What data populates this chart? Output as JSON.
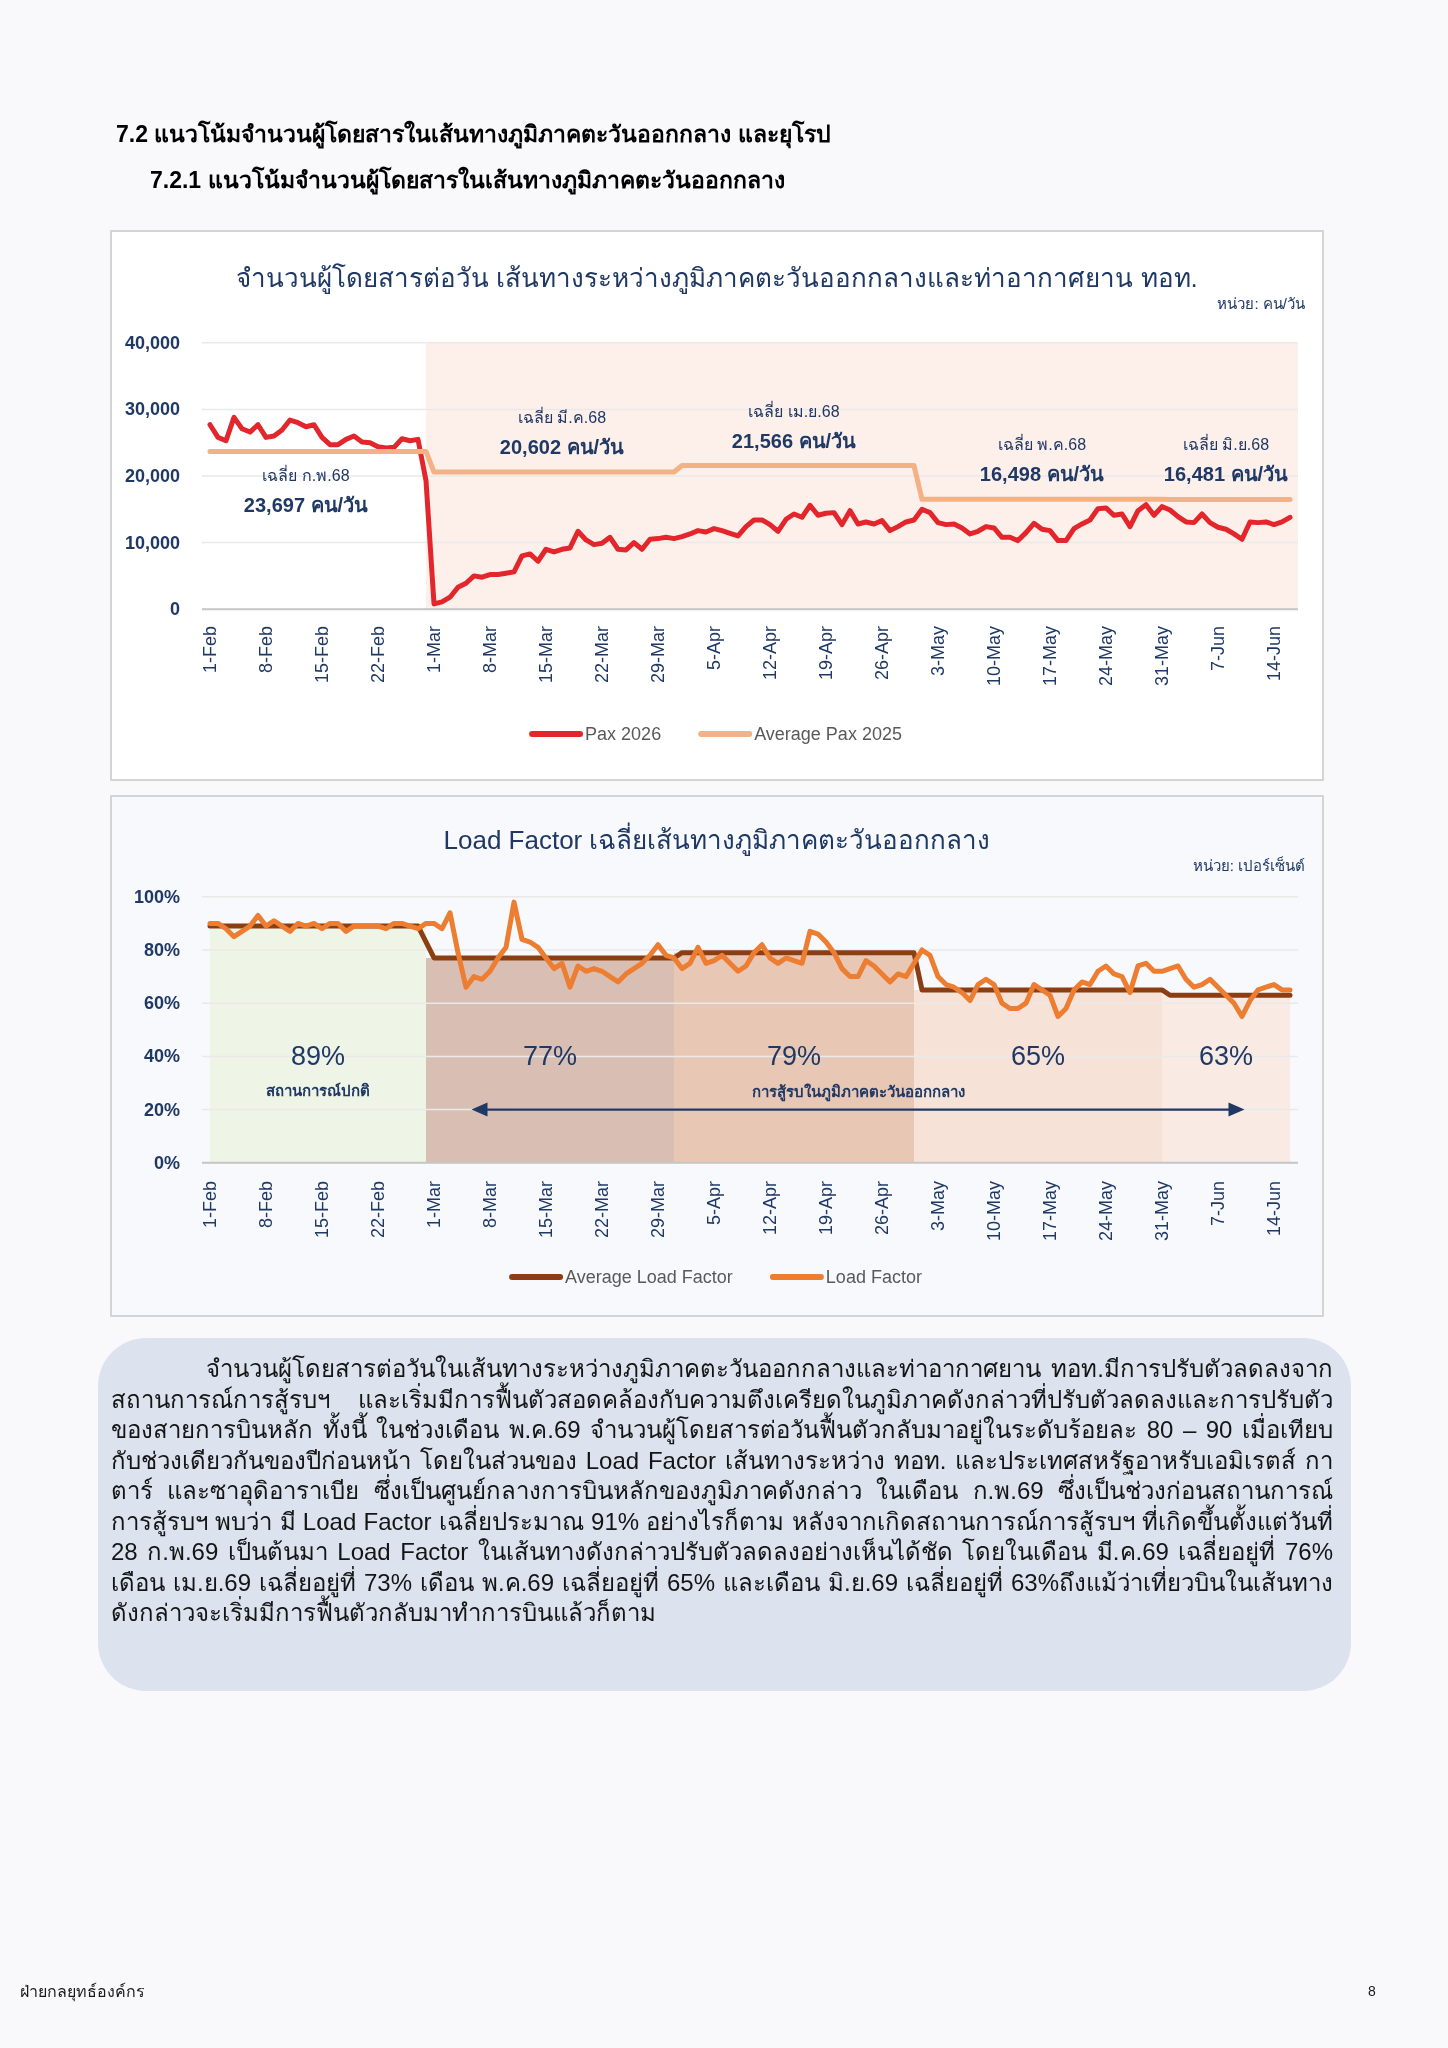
{
  "chart_data": [
    {
      "type": "line",
      "title": "จำนวนผู้โดยสารต่อวัน เส้นทางระหว่างภูมิภาคตะวันออกกลางและท่าอากาศยาน ทอท.",
      "subtitle": "หน่วย: คน/วัน",
      "x": [
        "--02-01",
        "--02-02",
        "--02-03",
        "--02-04",
        "--02-05",
        "--02-06",
        "--02-07",
        "--02-08",
        "--02-09",
        "--02-10",
        "--02-11",
        "--02-12",
        "--02-13",
        "--02-14",
        "--02-15",
        "--02-16",
        "--02-17",
        "--02-18",
        "--02-19",
        "--02-20",
        "--02-21",
        "--02-22",
        "--02-23",
        "--02-24",
        "--02-25",
        "--02-26",
        "--02-27",
        "--02-28",
        "--03-01",
        "--03-02",
        "--03-03",
        "--03-04",
        "--03-05",
        "--03-06",
        "--03-07",
        "--03-08",
        "--03-09",
        "--03-10",
        "--03-11",
        "--03-12",
        "--03-13",
        "--03-14",
        "--03-15",
        "--03-16",
        "--03-17",
        "--03-18",
        "--03-19",
        "--03-20",
        "--03-21",
        "--03-22",
        "--03-23",
        "--03-24",
        "--03-25",
        "--03-26",
        "--03-27",
        "--03-28",
        "--03-29",
        "--03-30",
        "--03-31",
        "--04-01",
        "--04-02",
        "--04-03",
        "--04-04",
        "--04-05",
        "--04-06",
        "--04-07",
        "--04-08",
        "--04-09",
        "--04-10",
        "--04-11",
        "--04-12",
        "--04-13",
        "--04-14",
        "--04-15",
        "--04-16",
        "--04-17",
        "--04-18",
        "--04-19",
        "--04-20",
        "--04-21",
        "--04-22",
        "--04-23",
        "--04-24",
        "--04-25",
        "--04-26",
        "--04-27",
        "--04-28",
        "--04-29",
        "--04-30",
        "--05-01",
        "--05-02",
        "--05-03",
        "--05-04",
        "--05-05",
        "--05-06",
        "--05-07",
        "--05-08",
        "--05-09",
        "--05-10",
        "--05-11",
        "--05-12",
        "--05-13",
        "--05-14",
        "--05-15",
        "--05-16",
        "--05-17",
        "--05-18",
        "--05-19",
        "--05-20",
        "--05-21",
        "--05-22",
        "--05-23",
        "--05-24",
        "--05-25",
        "--05-26",
        "--05-27",
        "--05-28",
        "--05-29",
        "--05-30",
        "--05-31",
        "--06-01",
        "--06-02",
        "--06-03",
        "--06-04",
        "--06-05",
        "--06-06",
        "--06-07",
        "--06-08",
        "--06-09",
        "--06-10",
        "--06-11",
        "--06-12",
        "--06-13",
        "--06-14",
        "--06-15",
        "--06-16"
      ],
      "series": [
        {
          "name": "Pax 2026",
          "color": "#e3262b",
          "values": [
            27700,
            25800,
            25300,
            28800,
            27100,
            26600,
            27700,
            25800,
            26000,
            26900,
            28400,
            28000,
            27400,
            27700,
            25800,
            24700,
            24700,
            25500,
            26000,
            25100,
            25000,
            24400,
            24200,
            24300,
            25600,
            25300,
            25500,
            19300,
            800,
            1100,
            1800,
            3300,
            3900,
            5000,
            4800,
            5200,
            5200,
            5400,
            5600,
            8000,
            8300,
            7200,
            9000,
            8600,
            9000,
            9200,
            11700,
            10400,
            9700,
            9900,
            10800,
            9000,
            8900,
            10000,
            9000,
            10500,
            10600,
            10800,
            10600,
            10900,
            11300,
            11800,
            11600,
            12100,
            11800,
            11400,
            11000,
            12400,
            13400,
            13400,
            12700,
            11700,
            13500,
            14300,
            13800,
            15600,
            14100,
            14400,
            14500,
            12700,
            14800,
            12800,
            13100,
            12800,
            13300,
            11800,
            12400,
            13100,
            13400,
            15000,
            14500,
            13000,
            12700,
            12800,
            12200,
            11300,
            11700,
            12400,
            12200,
            10800,
            10800,
            10300,
            11500,
            12900,
            12000,
            11800,
            10300,
            10300,
            12100,
            12800,
            13400,
            15100,
            15200,
            14100,
            14300,
            12400,
            14800,
            15700,
            14100,
            15400,
            14900,
            13900,
            13100,
            13000,
            14300,
            13000,
            12300,
            12000,
            11300,
            10500,
            13100,
            13000,
            13100,
            12700,
            13100,
            13800
          ]
        },
        {
          "name": "Average Pax 2025",
          "color": "#f4b183",
          "values": [
            23697,
            23697,
            23697,
            23697,
            23697,
            23697,
            23697,
            23697,
            23697,
            23697,
            23697,
            23697,
            23697,
            23697,
            23697,
            23697,
            23697,
            23697,
            23697,
            23697,
            23697,
            23697,
            23697,
            23697,
            23697,
            23697,
            23697,
            23697,
            20602,
            20602,
            20602,
            20602,
            20602,
            20602,
            20602,
            20602,
            20602,
            20602,
            20602,
            20602,
            20602,
            20602,
            20602,
            20602,
            20602,
            20602,
            20602,
            20602,
            20602,
            20602,
            20602,
            20602,
            20602,
            20602,
            20602,
            20602,
            20602,
            20602,
            20602,
            21566,
            21566,
            21566,
            21566,
            21566,
            21566,
            21566,
            21566,
            21566,
            21566,
            21566,
            21566,
            21566,
            21566,
            21566,
            21566,
            21566,
            21566,
            21566,
            21566,
            21566,
            21566,
            21566,
            21566,
            21566,
            21566,
            21566,
            21566,
            21566,
            21566,
            16498,
            16498,
            16498,
            16498,
            16498,
            16498,
            16498,
            16498,
            16498,
            16498,
            16498,
            16498,
            16498,
            16498,
            16498,
            16498,
            16498,
            16498,
            16498,
            16498,
            16498,
            16498,
            16498,
            16498,
            16498,
            16498,
            16498,
            16498,
            16498,
            16498,
            16498,
            16481,
            16481,
            16481,
            16481,
            16481,
            16481,
            16481,
            16481,
            16481,
            16481,
            16481,
            16481,
            16481,
            16481,
            16481,
            16481
          ],
          "value_labels": [
            null,
            null,
            null,
            null,
            null,
            null,
            null,
            null,
            null,
            null,
            null,
            null,
            "เฉลี่ย ก.พ.68\n23,697 คน/วัน",
            null,
            null,
            null,
            null,
            null,
            null,
            null,
            null,
            null,
            null,
            null,
            null,
            null,
            null,
            null,
            null,
            null,
            null,
            null,
            null,
            null,
            null,
            null,
            null,
            null,
            null,
            null,
            null,
            null,
            null,
            null,
            "เฉลี่ย มี.ค.68\n20,602 คน/วัน",
            null,
            null,
            null,
            null,
            null,
            null,
            null,
            null,
            null,
            null,
            null,
            null,
            null,
            null,
            null,
            null,
            null,
            null,
            null,
            null,
            null,
            null,
            null,
            null,
            null,
            null,
            null,
            null,
            "เฉลี่ย เม.ย.68\n21,566 คน/วัน",
            null,
            null,
            null,
            null,
            null,
            null,
            null,
            null,
            null,
            null,
            null,
            null,
            null,
            null,
            null,
            null,
            null,
            null,
            null,
            null,
            null,
            null,
            null,
            null,
            null,
            null,
            null,
            null,
            null,
            null,
            "เฉลี่ย พ.ค.68\n16,498 คน/วัน",
            null,
            null,
            null,
            null,
            null,
            null,
            null,
            null,
            null,
            null,
            null,
            null,
            null,
            null,
            null,
            null,
            null,
            null,
            null,
            null,
            null,
            null,
            "เฉลี่ย มิ.ย.68\n16,481 คน/วัน",
            null,
            null,
            null,
            null,
            null,
            null,
            null,
            null
          ]
        }
      ],
      "xlim": [
        "--01-31",
        "--06-17"
      ],
      "xticks": [
        {
          "value": "--02-01",
          "label": "1-Feb"
        },
        {
          "value": "--02-08",
          "label": "8-Feb"
        },
        {
          "value": "--02-15",
          "label": "15-Feb"
        },
        {
          "value": "--02-22",
          "label": "22-Feb"
        },
        {
          "value": "--03-01",
          "label": "1-Mar"
        },
        {
          "value": "--03-08",
          "label": "8-Mar"
        },
        {
          "value": "--03-15",
          "label": "15-Mar"
        },
        {
          "value": "--03-22",
          "label": "22-Mar"
        },
        {
          "value": "--03-29",
          "label": "29-Mar"
        },
        {
          "value": "--04-05",
          "label": "5-Apr"
        },
        {
          "value": "--04-12",
          "label": "12-Apr"
        },
        {
          "value": "--04-19",
          "label": "19-Apr"
        },
        {
          "value": "--04-26",
          "label": "26-Apr"
        },
        {
          "value": "--05-03",
          "label": "3-May"
        },
        {
          "value": "--05-10",
          "label": "10-May"
        },
        {
          "value": "--05-17",
          "label": "17-May"
        },
        {
          "value": "--05-24",
          "label": "24-May"
        },
        {
          "value": "--05-31",
          "label": "31-May"
        },
        {
          "value": "--06-07",
          "label": "7-Jun"
        },
        {
          "value": "--06-14",
          "label": "14-Jun"
        }
      ],
      "ylim": [
        0,
        40000
      ],
      "yticks": [
        0,
        {
          "value": 10000,
          "label": "10,000"
        },
        {
          "value": 20000,
          "label": "20,000"
        },
        {
          "value": 30000,
          "label": "30,000"
        },
        {
          "value": 40000,
          "label": "40,000"
        }
      ],
      "grid": "y",
      "legend": "bottom",
      "bands": [
        {
          "axis": "x",
          "from": "--02-28",
          "to": "--06-17",
          "color": "#fdf0eb"
        }
      ],
      "annotations": [
        "7.2 แนวโน้มจำนวนผู้โดยสารในเส้นทางภูมิภาคตะวันออกกลาง และยุโรป",
        "7.2.1 แนวโน้มจำนวนผู้โดยสารในเส้นทางภูมิภาคตะวันออกกลาง"
      ]
    },
    {
      "type": "line",
      "title": "Load Factor เฉลี่ยเส้นทางภูมิภาคตะวันออกกลาง",
      "subtitle": "หน่วย: เปอร์เซ็นต์",
      "x": [
        "--02-01",
        "--02-02",
        "--02-03",
        "--02-04",
        "--02-05",
        "--02-06",
        "--02-07",
        "--02-08",
        "--02-09",
        "--02-10",
        "--02-11",
        "--02-12",
        "--02-13",
        "--02-14",
        "--02-15",
        "--02-16",
        "--02-17",
        "--02-18",
        "--02-19",
        "--02-20",
        "--02-21",
        "--02-22",
        "--02-23",
        "--02-24",
        "--02-25",
        "--02-26",
        "--02-27",
        "--02-28",
        "--03-01",
        "--03-02",
        "--03-03",
        "--03-04",
        "--03-05",
        "--03-06",
        "--03-07",
        "--03-08",
        "--03-09",
        "--03-10",
        "--03-11",
        "--03-12",
        "--03-13",
        "--03-14",
        "--03-15",
        "--03-16",
        "--03-17",
        "--03-18",
        "--03-19",
        "--03-20",
        "--03-21",
        "--03-22",
        "--03-23",
        "--03-24",
        "--03-25",
        "--03-26",
        "--03-27",
        "--03-28",
        "--03-29",
        "--03-30",
        "--03-31",
        "--04-01",
        "--04-02",
        "--04-03",
        "--04-04",
        "--04-05",
        "--04-06",
        "--04-07",
        "--04-08",
        "--04-09",
        "--04-10",
        "--04-11",
        "--04-12",
        "--04-13",
        "--04-14",
        "--04-15",
        "--04-16",
        "--04-17",
        "--04-18",
        "--04-19",
        "--04-20",
        "--04-21",
        "--04-22",
        "--04-23",
        "--04-24",
        "--04-25",
        "--04-26",
        "--04-27",
        "--04-28",
        "--04-29",
        "--04-30",
        "--05-01",
        "--05-02",
        "--05-03",
        "--05-04",
        "--05-05",
        "--05-06",
        "--05-07",
        "--05-08",
        "--05-09",
        "--05-10",
        "--05-11",
        "--05-12",
        "--05-13",
        "--05-14",
        "--05-15",
        "--05-16",
        "--05-17",
        "--05-18",
        "--05-19",
        "--05-20",
        "--05-21",
        "--05-22",
        "--05-23",
        "--05-24",
        "--05-25",
        "--05-26",
        "--05-27",
        "--05-28",
        "--05-29",
        "--05-30",
        "--05-31",
        "--06-01",
        "--06-02",
        "--06-03",
        "--06-04",
        "--06-05",
        "--06-06",
        "--06-07",
        "--06-08",
        "--06-09",
        "--06-10",
        "--06-11",
        "--06-12",
        "--06-13",
        "--06-14",
        "--06-15",
        "--06-16"
      ],
      "series": [
        {
          "type": "area",
          "color": "#eef5e6",
          "x": [
            "--02-01",
            "--02-28"
          ],
          "values": [
            89,
            89
          ]
        },
        {
          "type": "area",
          "color": "#d9bfb3",
          "x": [
            "--02-28",
            "--03-31"
          ],
          "values": [
            77,
            77
          ]
        },
        {
          "type": "area",
          "color": "#e8c7b5",
          "x": [
            "--03-31",
            "--04-30"
          ],
          "values": [
            79,
            79
          ]
        },
        {
          "type": "area",
          "color": "#f7e2d7",
          "x": [
            "--04-30",
            "--05-31"
          ],
          "values": [
            65,
            65
          ]
        },
        {
          "type": "area",
          "color": "#f9ebe4",
          "x": [
            "--05-31",
            "--06-16"
          ],
          "values": [
            63,
            63
          ]
        },
        {
          "name": "Average Load Factor",
          "color": "#8b3e12",
          "x": [
            "--02-01",
            "--02-27",
            "--03-01",
            "--03-31",
            "--04-01",
            "--04-30",
            "--05-01",
            "--05-31",
            "--06-01",
            "--06-16"
          ],
          "values": [
            89,
            89,
            77,
            77,
            79,
            79,
            65,
            65,
            63,
            63
          ]
        },
        {
          "name": "Load Factor",
          "color": "#ed7d31",
          "values": [
            90,
            90,
            88,
            85,
            87,
            89,
            93,
            89,
            91,
            89,
            87,
            90,
            89,
            90,
            88,
            90,
            90,
            87,
            89,
            89,
            89,
            89,
            88,
            90,
            90,
            89,
            88,
            90,
            90,
            88,
            94,
            79,
            66,
            70,
            69,
            72,
            77,
            81,
            98,
            84,
            83,
            81,
            77,
            73,
            75,
            66,
            74,
            72,
            73,
            72,
            70,
            68,
            71,
            73,
            75,
            78,
            82,
            78,
            77,
            73,
            75,
            81,
            75,
            76,
            78,
            75,
            72,
            74,
            79,
            82,
            77,
            75,
            77,
            76,
            75,
            87,
            86,
            83,
            79,
            73,
            70,
            70,
            76,
            74,
            71,
            68,
            71,
            70,
            75,
            80,
            78,
            70,
            67,
            66,
            64,
            61,
            67,
            69,
            67,
            60,
            58,
            58,
            60,
            67,
            65,
            63,
            55,
            58,
            65,
            68,
            67,
            72,
            74,
            71,
            70,
            64,
            74,
            75,
            72,
            72,
            73,
            74,
            69,
            66,
            67,
            69,
            66,
            63,
            60,
            55,
            61,
            65,
            66,
            67,
            65,
            65
          ]
        },
        {
          "type": "line",
          "color": "#1f3864",
          "x": [
            "--03-07",
            "--06-09"
          ],
          "values": [
            20,
            20
          ],
          "marker": "triangle"
        }
      ],
      "xlim": [
        "--01-31",
        "--06-17"
      ],
      "xticks": [
        {
          "value": "--02-01",
          "label": "1-Feb"
        },
        {
          "value": "--02-08",
          "label": "8-Feb"
        },
        {
          "value": "--02-15",
          "label": "15-Feb"
        },
        {
          "value": "--02-22",
          "label": "22-Feb"
        },
        {
          "value": "--03-01",
          "label": "1-Mar"
        },
        {
          "value": "--03-08",
          "label": "8-Mar"
        },
        {
          "value": "--03-15",
          "label": "15-Mar"
        },
        {
          "value": "--03-22",
          "label": "22-Mar"
        },
        {
          "value": "--03-29",
          "label": "29-Mar"
        },
        {
          "value": "--04-05",
          "label": "5-Apr"
        },
        {
          "value": "--04-12",
          "label": "12-Apr"
        },
        {
          "value": "--04-19",
          "label": "19-Apr"
        },
        {
          "value": "--04-26",
          "label": "26-Apr"
        },
        {
          "value": "--05-03",
          "label": "3-May"
        },
        {
          "value": "--05-10",
          "label": "10-May"
        },
        {
          "value": "--05-17",
          "label": "17-May"
        },
        {
          "value": "--05-24",
          "label": "24-May"
        },
        {
          "value": "--05-31",
          "label": "31-May"
        },
        {
          "value": "--06-07",
          "label": "7-Jun"
        },
        {
          "value": "--06-14",
          "label": "14-Jun"
        }
      ],
      "ylim": [
        0,
        100
      ],
      "yticks": [
        {
          "value": 0,
          "label": "0%"
        },
        {
          "value": 20,
          "label": "20%"
        },
        {
          "value": 40,
          "label": "40%"
        },
        {
          "value": 60,
          "label": "60%"
        },
        {
          "value": 80,
          "label": "80%"
        },
        {
          "value": 100,
          "label": "100%"
        }
      ],
      "grid": "y",
      "legend": "bottom",
      "annotations": [
        "89%\nสถานการณ์ปกติ",
        "77%",
        "79%",
        "65%",
        "63%",
        "การสู้รบในภูมิภาคตะวันออกกลาง"
      ]
    },
    {
      "type": "other",
      "annotations": [
        "จำนวนผู้โดยสารต่อวันในเส้นทางระหว่างภูมิภาคตะวันออกกลางและท่าอากาศยาน ทอท.มีการปรับตัวลดลงจากสถานการณ์การสู้รบฯ และเริ่มมีการฟื้นตัวสอดคล้องกับความตึงเครียดในภูมิภาคดังกล่าวที่ปรับตัวลดลงและการปรับตัวของสายการบินหลัก ทั้งนี้ ในช่วงเดือน พ.ค.69 จำนวนผู้โดยสารต่อวันฟื้นตัวกลับมาอยู่ในระดับร้อยละ 80 – 90 เมื่อเทียบกับช่วงเดียวกันของปีก่อนหน้า โดยในส่วนของ Load Factor เส้นทางระหว่าง ทอท. และประเทศสหรัฐอาหรับเอมิเรตส์ กาตาร์ และซาอุดิอาราเบีย ซึ่งเป็นศูนย์กลางการบินหลักของภูมิภาคดังกล่าว ในเดือน ก.พ.69 ซึ่งเป็นช่วงก่อนสถานการณ์การสู้รบฯ พบว่า มี Load Factor เฉลี่ยประมาณ 91% อย่างไรก็ตาม หลังจากเกิดสถานการณ์การสู้รบฯ ที่เกิดขึ้นตั้งแต่วันที่ 28 ก.พ.69 เป็นต้นมา Load Factor ในเส้นทางดังกล่าวปรับตัวลดลงอย่างเห็นได้ชัด โดยในเดือน มี.ค.69 เฉลี่ยอยู่ที่ 76% เดือน เม.ย.69 เฉลี่ยอยู่ที่ 73% เดือน พ.ค.69 เฉลี่ยอยู่ที่ 65% และเดือน มิ.ย.69 เฉลี่ยอยู่ที่ 63%ถึงแม้ว่าเที่ยวบินในเส้นทางดังกล่าวจะเริ่มมีการฟื้นตัวกลับมาทำการบินแล้วก็ตาม",
        "ฝ่ายกลยุทธ์องค์กร",
        "8"
      ]
    }
  ]
}
